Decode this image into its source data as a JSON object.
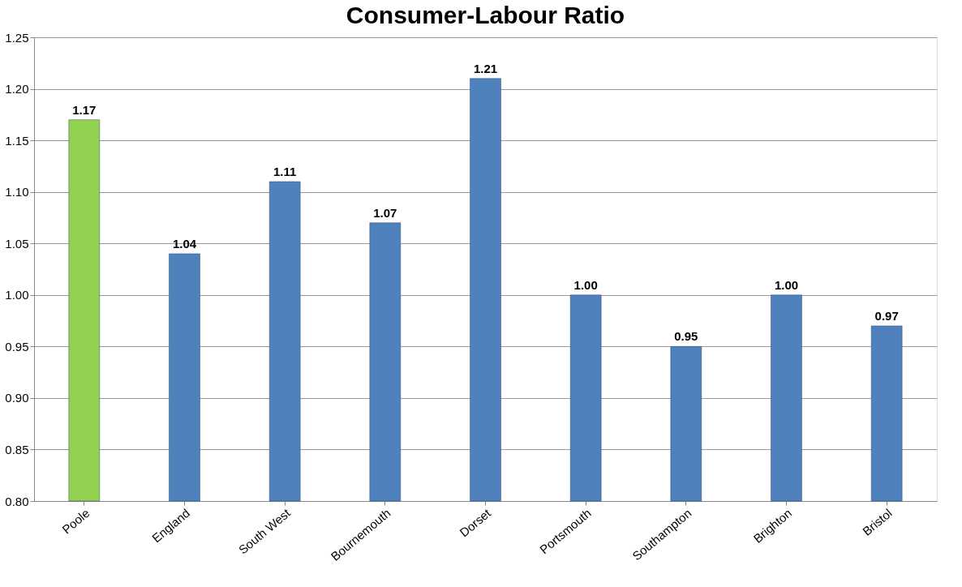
{
  "chart_data": {
    "type": "bar",
    "title": "Consumer-Labour Ratio",
    "categories": [
      "Poole",
      "England",
      "South West",
      "Bournemouth",
      "Dorset",
      "Portsmouth",
      "Southampton",
      "Brighton",
      "Bristol"
    ],
    "values": [
      1.17,
      1.04,
      1.11,
      1.07,
      1.21,
      1.0,
      0.95,
      1.0,
      0.97
    ],
    "colors": [
      "#92d050",
      "#4f81bd",
      "#4f81bd",
      "#4f81bd",
      "#4f81bd",
      "#4f81bd",
      "#4f81bd",
      "#4f81bd",
      "#4f81bd"
    ],
    "value_labels": [
      "1.17",
      "1.04",
      "1.11",
      "1.07",
      "1.21",
      "1.00",
      "0.95",
      "1.00",
      "0.97"
    ],
    "ylim": [
      0.8,
      1.25
    ],
    "yticks": [
      {
        "value": 0.8,
        "label": "0.80"
      },
      {
        "value": 0.85,
        "label": "0.85"
      },
      {
        "value": 0.9,
        "label": "0.90"
      },
      {
        "value": 0.95,
        "label": "0.95"
      },
      {
        "value": 1.0,
        "label": "1.00"
      },
      {
        "value": 1.05,
        "label": "1.05"
      },
      {
        "value": 1.1,
        "label": "1.10"
      },
      {
        "value": 1.15,
        "label": "1.15"
      },
      {
        "value": 1.2,
        "label": "1.20"
      },
      {
        "value": 1.25,
        "label": "1.25"
      }
    ],
    "grid": "y"
  }
}
